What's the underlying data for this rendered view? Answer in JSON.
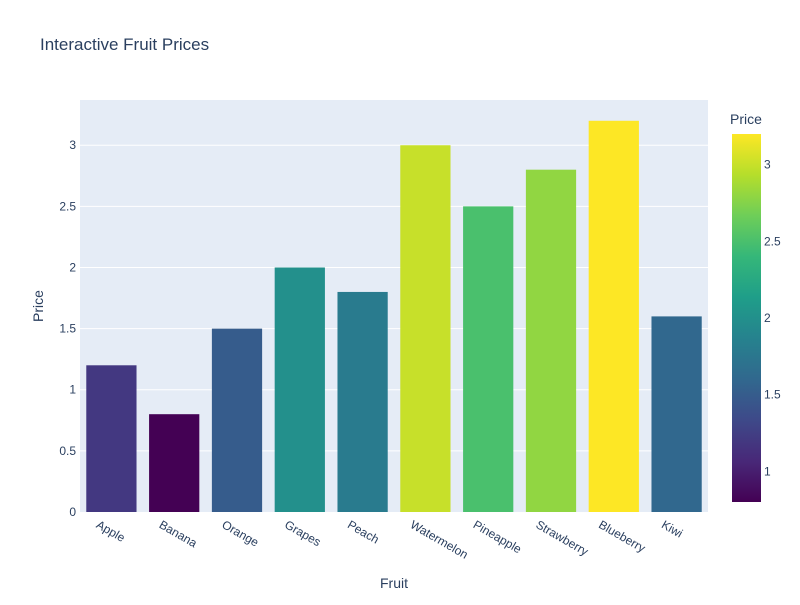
{
  "chart_data": {
    "type": "bar",
    "title": "Interactive Fruit Prices",
    "xlabel": "Fruit",
    "ylabel": "Price",
    "categories": [
      "Apple",
      "Banana",
      "Orange",
      "Grapes",
      "Peach",
      "Watermelon",
      "Pineapple",
      "Strawberry",
      "Blueberry",
      "Kiwi"
    ],
    "values": [
      1.2,
      0.8,
      1.5,
      2.0,
      1.8,
      3.0,
      2.5,
      2.8,
      3.2,
      1.6
    ],
    "ylim": [
      0,
      3.37
    ],
    "yticks": [
      0,
      0.5,
      1,
      1.5,
      2,
      2.5,
      3
    ],
    "ytick_labels": [
      "0",
      "0.5",
      "1",
      "1.5",
      "2",
      "2.5",
      "3"
    ],
    "grid": true,
    "colorscale": "Viridis",
    "colorbar": {
      "title": "Price",
      "range": [
        0.8,
        3.2
      ],
      "ticks": [
        1,
        1.5,
        2,
        2.5,
        3
      ],
      "tick_labels": [
        "1",
        "1.5",
        "2",
        "2.5",
        "3"
      ]
    }
  }
}
